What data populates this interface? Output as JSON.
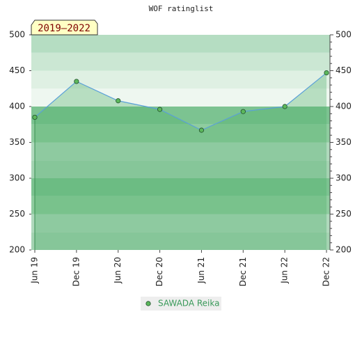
{
  "chart_data": {
    "type": "line",
    "title": "WOF ratinglist",
    "badge": "2019–2022",
    "categories": [
      "Jun 19",
      "Dec 19",
      "Jun 20",
      "Dec 20",
      "Jun 21",
      "Dec 21",
      "Jun 22",
      "Dec 22"
    ],
    "series": [
      {
        "name": "SAWADA Reika",
        "color": "#5aa0d8",
        "marker_color": "#5cb85c",
        "values": [
          385,
          435,
          408,
          396,
          367,
          393,
          400,
          447
        ]
      }
    ],
    "ylim": [
      200,
      500
    ],
    "yticks": [
      200,
      250,
      300,
      350,
      400,
      450,
      500
    ],
    "y2lim": [
      200,
      500
    ],
    "y2ticks": [
      200,
      250,
      300,
      350,
      400,
      450,
      500
    ],
    "area": true,
    "legend": "bottom"
  }
}
